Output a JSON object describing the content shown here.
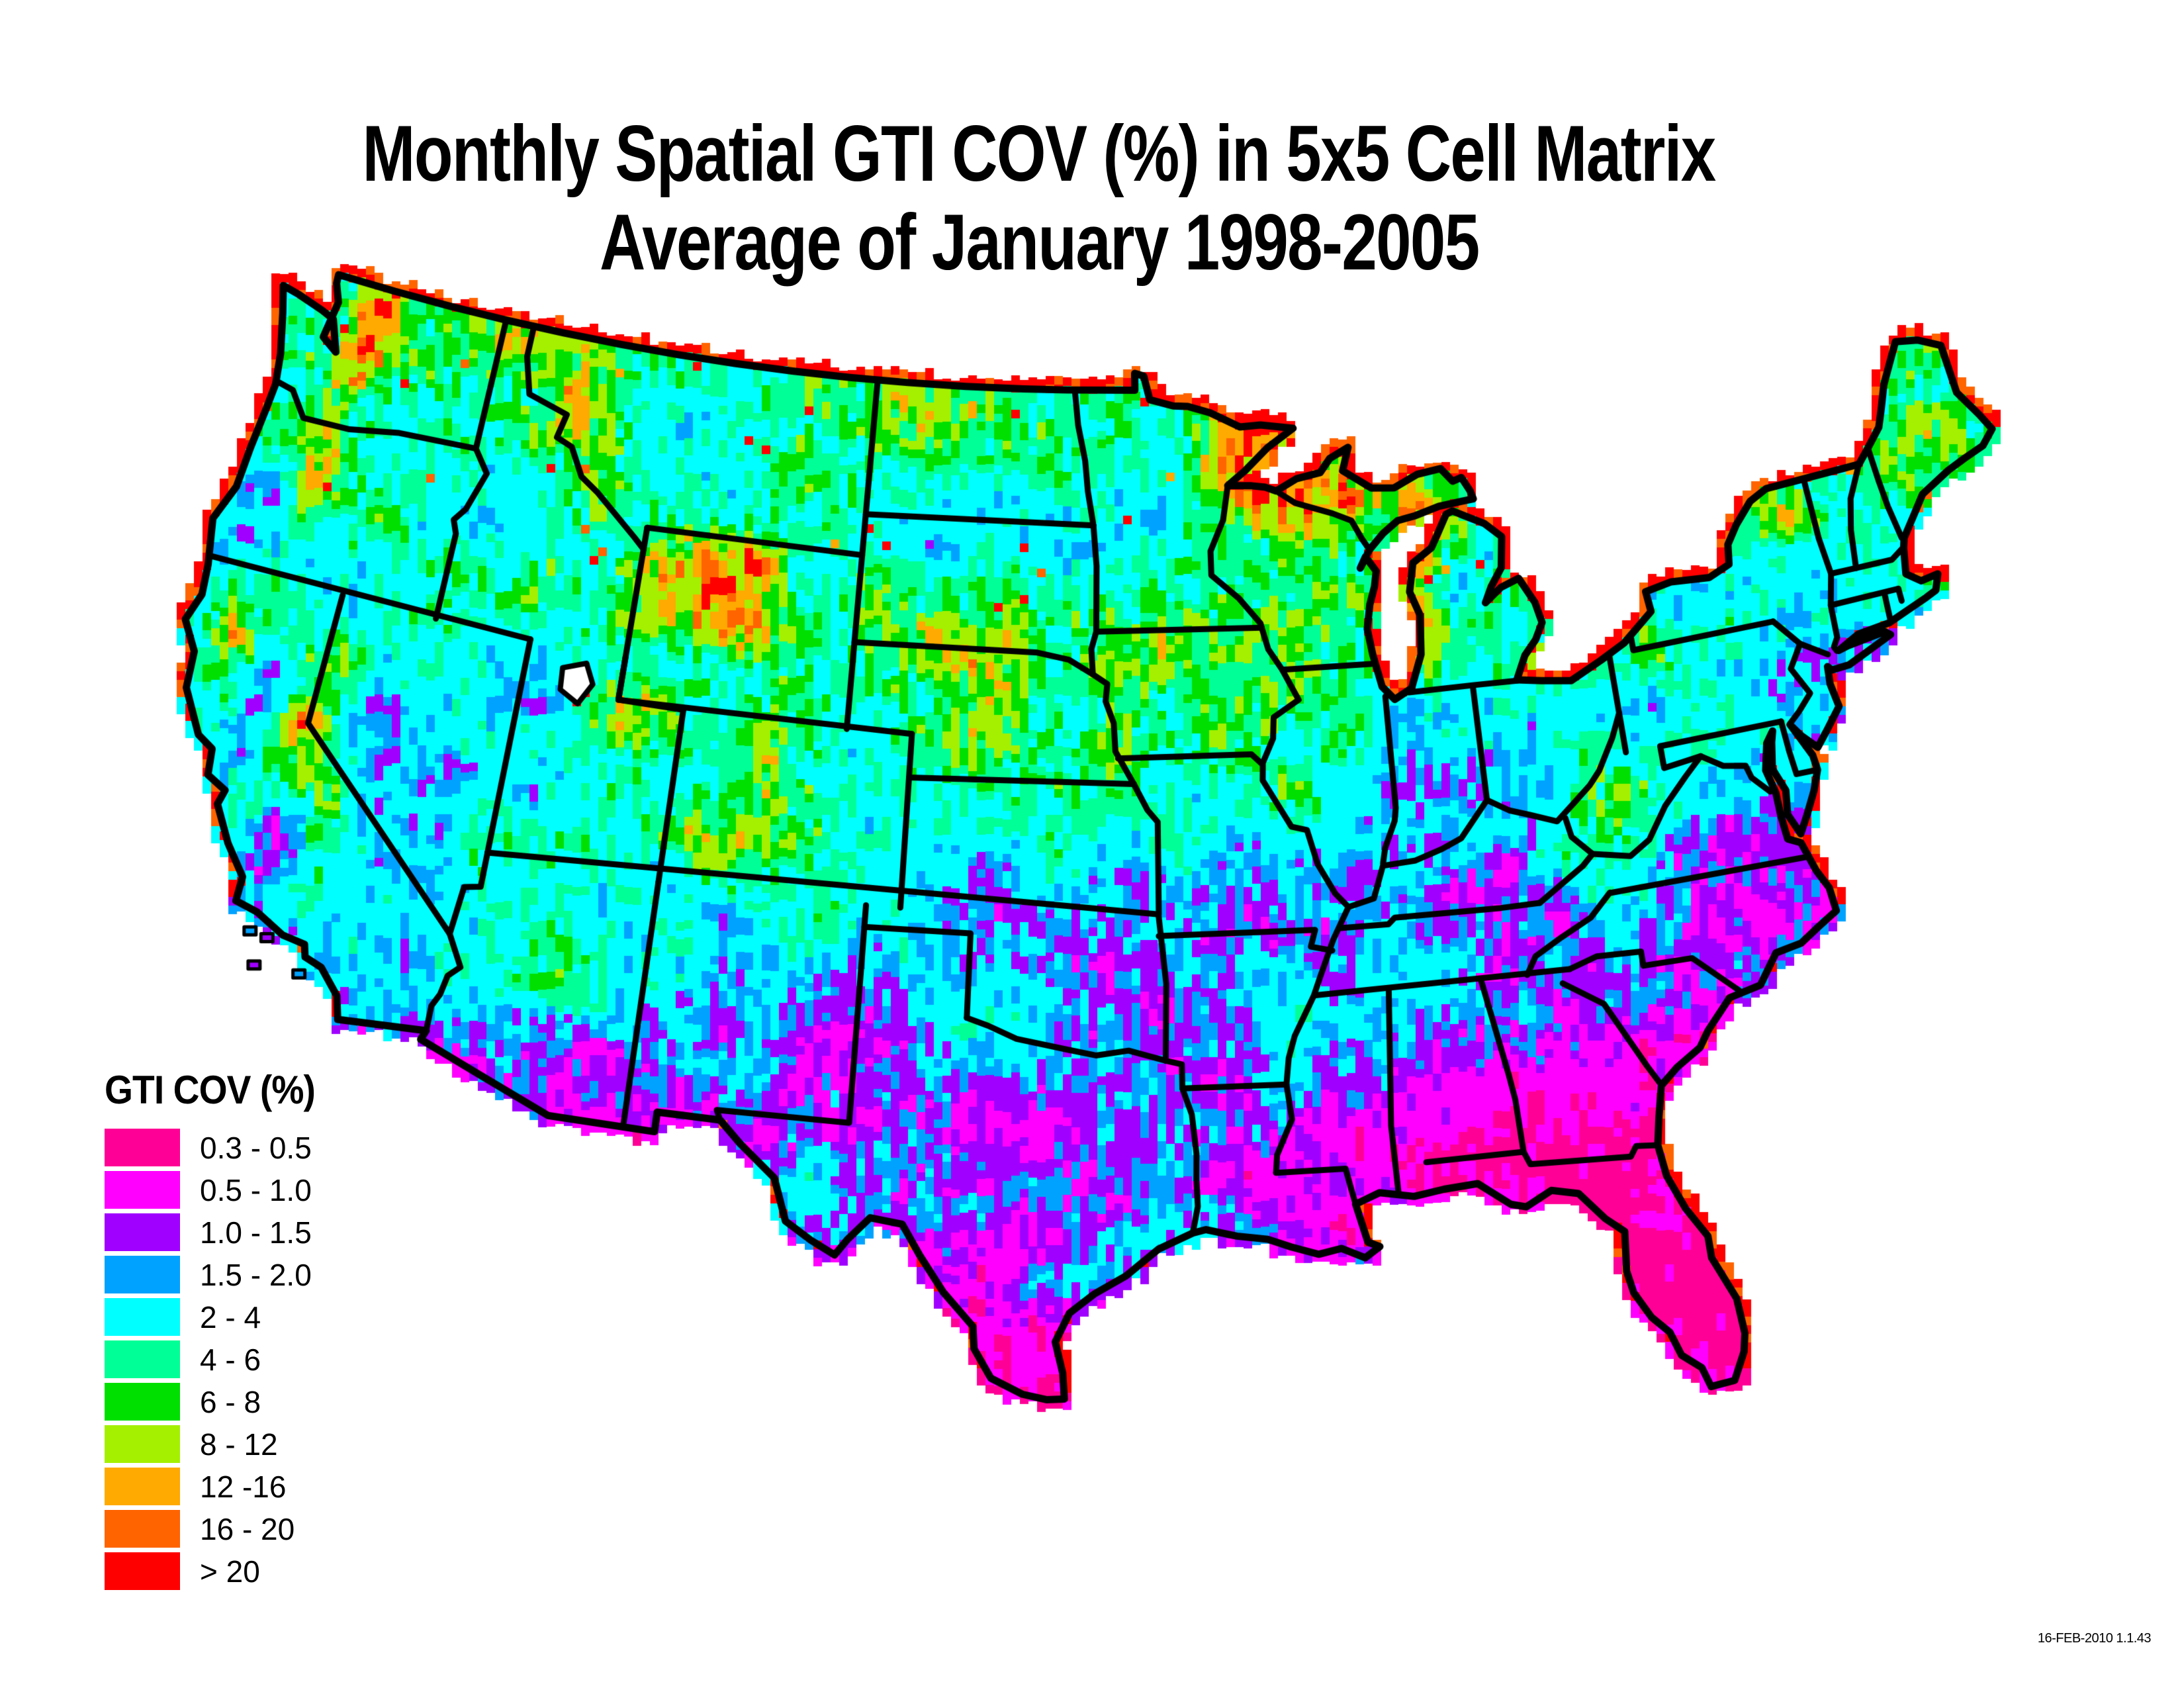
{
  "title": {
    "line1": "Monthly Spatial GTI COV (%) in 5x5 Cell Matrix",
    "line2": "Average of January 1998-2005"
  },
  "legend": {
    "title": "GTI COV (%)",
    "items": [
      {
        "label": "0.3 - 0.5",
        "color": "#FF0096"
      },
      {
        "label": "0.5 - 1.0",
        "color": "#FF00FF"
      },
      {
        "label": "1.0 - 1.5",
        "color": "#A000FF"
      },
      {
        "label": "1.5 - 2.0",
        "color": "#00A2FF"
      },
      {
        "label": "2 - 4",
        "color": "#00FFFF"
      },
      {
        "label": "4 - 6",
        "color": "#00FF96"
      },
      {
        "label": "6 - 8",
        "color": "#00E000"
      },
      {
        "label": "8 - 12",
        "color": "#A4F000"
      },
      {
        "label": "12 -16",
        "color": "#FFAA00"
      },
      {
        "label": "16 - 20",
        "color": "#FF6400"
      },
      {
        "label": "> 20",
        "color": "#FF0000"
      }
    ]
  },
  "map": {
    "units": "%",
    "bin_thresholds": [
      0.5,
      1.0,
      1.5,
      2.0,
      4,
      6,
      8,
      12,
      16,
      20
    ]
  },
  "footer": {
    "timestamp": "16-FEB-2010 1.1.43"
  }
}
